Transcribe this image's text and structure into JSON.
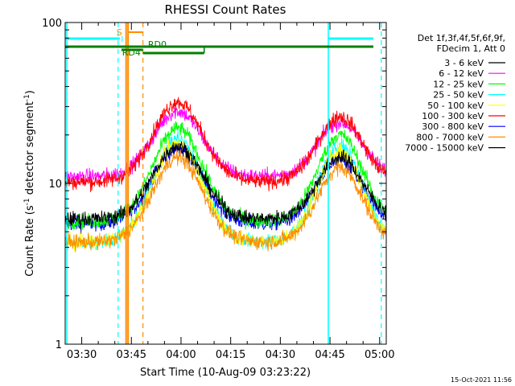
{
  "chart_data": {
    "type": "line",
    "title": "RHESSI Count Rates",
    "xlabel": "Start Time (10-Aug-09 03:23:22)",
    "ylabel": "Count Rate (s⁻¹ detector segment⁻¹)",
    "ylabel_parts": {
      "main": "Count Rate (s",
      "sup1": "-1",
      "mid": " detector segment",
      "sup2": "-1",
      "end": ")"
    },
    "y_scale": "log",
    "ylim": [
      1,
      100
    ],
    "xlim_minutes": [
      -5,
      92
    ],
    "x_ticks": [
      {
        "label": "03:30",
        "minute": 0
      },
      {
        "label": "03:45",
        "minute": 15
      },
      {
        "label": "04:00",
        "minute": 30
      },
      {
        "label": "04:15",
        "minute": 45
      },
      {
        "label": "04:30",
        "minute": 60
      },
      {
        "label": "04:45",
        "minute": 75
      },
      {
        "label": "05:00",
        "minute": 90
      }
    ],
    "y_ticks": [
      {
        "label": "1",
        "value": 1
      },
      {
        "label": "10",
        "value": 10
      },
      {
        "label": "100",
        "value": 100
      }
    ],
    "legend_header": [
      "Det 1f,3f,4f,5f,6f,9f,",
      "FDecim 1, Att 0"
    ],
    "series": [
      {
        "name": "3 - 6 keV",
        "color": "#000000",
        "baseline": 6.0,
        "peak1": 17.0,
        "peak2": 14.5
      },
      {
        "name": "6 - 12 keV",
        "color": "#ff00ff",
        "baseline": 11.0,
        "peak1": 28.0,
        "peak2": 24.0
      },
      {
        "name": "12 - 25 keV",
        "color": "#00ff00",
        "baseline": 5.8,
        "peak1": 22.0,
        "peak2": 20.0
      },
      {
        "name": "25 - 50 keV",
        "color": "#00ffff",
        "baseline": 4.3,
        "peak1": 19.0,
        "peak2": 17.0
      },
      {
        "name": "50 - 100 keV",
        "color": "#ffff00",
        "baseline": 4.3,
        "peak1": 18.0,
        "peak2": 16.0
      },
      {
        "name": "100 - 300 keV",
        "color": "#ff0000",
        "baseline": 10.2,
        "peak1": 32.0,
        "peak2": 26.0
      },
      {
        "name": "300 - 800 keV",
        "color": "#0000ff",
        "baseline": 5.6,
        "peak1": 16.5,
        "peak2": 14.0
      },
      {
        "name": "800 - 7000 keV",
        "color": "#ff8c00",
        "baseline": 4.3,
        "peak1": 14.5,
        "peak2": 12.5
      },
      {
        "name": "7000 - 15000 keV",
        "color": "#000000",
        "baseline": null,
        "peak1": null,
        "peak2": null
      }
    ],
    "peaks_minute": {
      "peak1": 29,
      "peak2": 78
    },
    "flag_labels": {
      "s": "S",
      "rd0": "RD0",
      "rd4": "RD4"
    },
    "timestamp": "15-Oct-2021 11:56"
  },
  "colors": {
    "cyan_bars": "#00ffff",
    "green_bars": "#008000",
    "orange_flags": "#ff8c00",
    "axes": "#000000"
  }
}
